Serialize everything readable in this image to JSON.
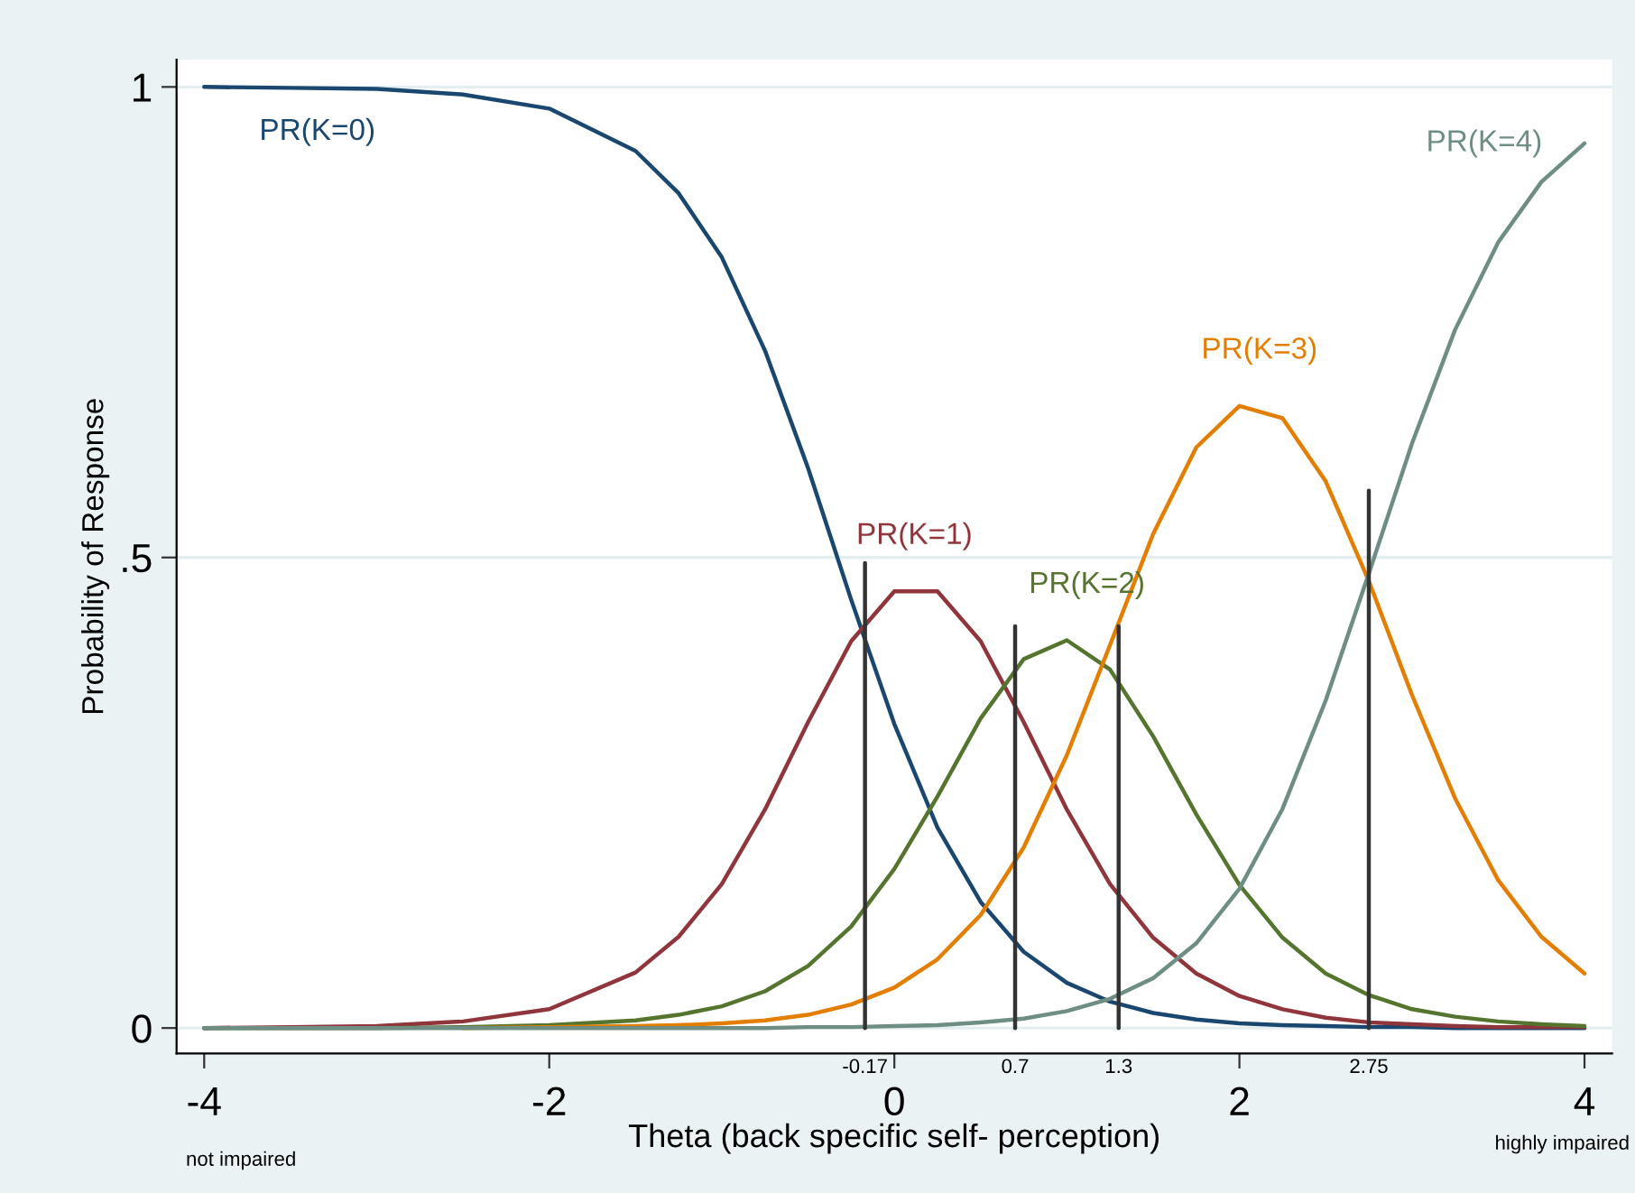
{
  "chart_data": {
    "type": "line",
    "x": [
      -4,
      -3.5,
      -3,
      -2.5,
      -2,
      -1.5,
      -1.25,
      -1,
      -0.75,
      -0.5,
      -0.25,
      0,
      0.25,
      0.5,
      0.75,
      1,
      1.25,
      1.5,
      1.75,
      2,
      2.25,
      2.5,
      2.75,
      3,
      3.25,
      3.5,
      3.75,
      4
    ],
    "series": [
      {
        "name": "PR(K=0)",
        "color": "#1a476f",
        "values": [
          1.0,
          0.999,
          0.998,
          0.992,
          0.977,
          0.932,
          0.887,
          0.819,
          0.72,
          0.595,
          0.455,
          0.323,
          0.213,
          0.134,
          0.081,
          0.048,
          0.028,
          0.016,
          0.009,
          0.005,
          0.003,
          0.002,
          0.001,
          0.001,
          0.0,
          0.0,
          0.0,
          0.0
        ]
      },
      {
        "name": "PR(K=1)",
        "color": "#90353b",
        "values": [
          0.0,
          0.001,
          0.002,
          0.007,
          0.02,
          0.059,
          0.097,
          0.153,
          0.232,
          0.325,
          0.411,
          0.464,
          0.464,
          0.411,
          0.325,
          0.232,
          0.153,
          0.096,
          0.058,
          0.034,
          0.02,
          0.011,
          0.006,
          0.004,
          0.002,
          0.001,
          0.001,
          0.001
        ]
      },
      {
        "name": "PR(K=2)",
        "color": "#55752f",
        "values": [
          0.0,
          0.0,
          0.0,
          0.001,
          0.003,
          0.008,
          0.014,
          0.023,
          0.039,
          0.066,
          0.108,
          0.169,
          0.246,
          0.329,
          0.392,
          0.412,
          0.381,
          0.31,
          0.227,
          0.152,
          0.096,
          0.058,
          0.035,
          0.02,
          0.012,
          0.007,
          0.004,
          0.002
        ]
      },
      {
        "name": "PR(K=3)",
        "color": "#e37e00",
        "values": [
          null,
          null,
          null,
          0.0,
          0.001,
          0.002,
          0.003,
          0.005,
          0.008,
          0.014,
          0.025,
          0.043,
          0.073,
          0.12,
          0.192,
          0.29,
          0.407,
          0.525,
          0.617,
          0.661,
          0.648,
          0.581,
          0.475,
          0.354,
          0.244,
          0.157,
          0.097,
          0.058
        ]
      },
      {
        "name": "PR(K=4)",
        "color": "#6e8e84",
        "values": [
          0.0,
          0.0,
          0.0,
          0.0,
          0.0,
          0.0,
          0.0,
          0.0,
          0.0,
          0.001,
          0.001,
          0.002,
          0.003,
          0.006,
          0.01,
          0.018,
          0.031,
          0.053,
          0.09,
          0.148,
          0.233,
          0.348,
          0.483,
          0.621,
          0.742,
          0.835,
          0.899,
          0.94
        ]
      },
      {
        "name": "-0.17",
        "color": "#333333",
        "x": [
          -0.17,
          -0.17
        ],
        "values": [
          0,
          0.494
        ]
      },
      {
        "name": "0.7",
        "color": "#333333",
        "x": [
          0.7,
          0.7
        ],
        "values": [
          0,
          0.427
        ]
      },
      {
        "name": "1.3",
        "color": "#333333",
        "x": [
          1.3,
          1.3
        ],
        "values": [
          0,
          0.427
        ]
      },
      {
        "name": "2.75",
        "color": "#333333",
        "x": [
          2.75,
          2.75
        ],
        "values": [
          0,
          0.571
        ]
      }
    ],
    "xlabel": "Theta (back specific self- perception)",
    "ylabel": "Probability of Response",
    "xlim": [
      -4.16,
      4.16
    ],
    "ylim": [
      -0.027,
      1.029
    ],
    "xticks": [
      -4,
      -2,
      0,
      2,
      4
    ],
    "yticks": [
      0,
      {
        "value": 0.5,
        "label": ".5"
      },
      1
    ],
    "grid": "y",
    "annotations": [
      "not impaired",
      "highly impaired"
    ]
  }
}
